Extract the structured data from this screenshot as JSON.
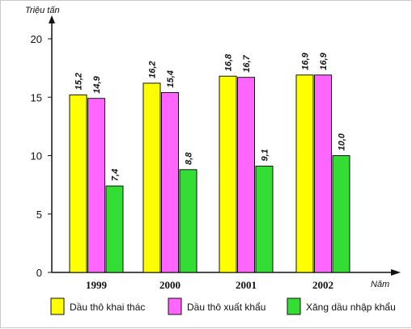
{
  "chart_data": {
    "type": "bar",
    "y_unit_label": "Triệu tấn",
    "x_unit_label": "Năm",
    "categories": [
      "1999",
      "2000",
      "2001",
      "2002"
    ],
    "y_ticks": [
      0,
      5,
      10,
      15,
      20
    ],
    "ylim": [
      0,
      20
    ],
    "grid": false,
    "legend_position": "bottom",
    "series": [
      {
        "name": "Dầu thô khai thác",
        "color": "#ffff00",
        "values": [
          15.2,
          16.2,
          16.8,
          16.9
        ],
        "labels": [
          "15,2",
          "16,2",
          "16,8",
          "16,9"
        ]
      },
      {
        "name": "Dầu thô xuất khẩu",
        "color": "#ff66ff",
        "values": [
          14.9,
          15.4,
          16.7,
          16.9
        ],
        "labels": [
          "14,9",
          "15,4",
          "16,7",
          "16,9"
        ]
      },
      {
        "name": "Xăng dầu nhập khẩu",
        "color": "#33dd33",
        "values": [
          7.4,
          8.8,
          9.1,
          10.0
        ],
        "labels": [
          "7,4",
          "8,8",
          "9,1",
          "10,0"
        ]
      }
    ]
  }
}
